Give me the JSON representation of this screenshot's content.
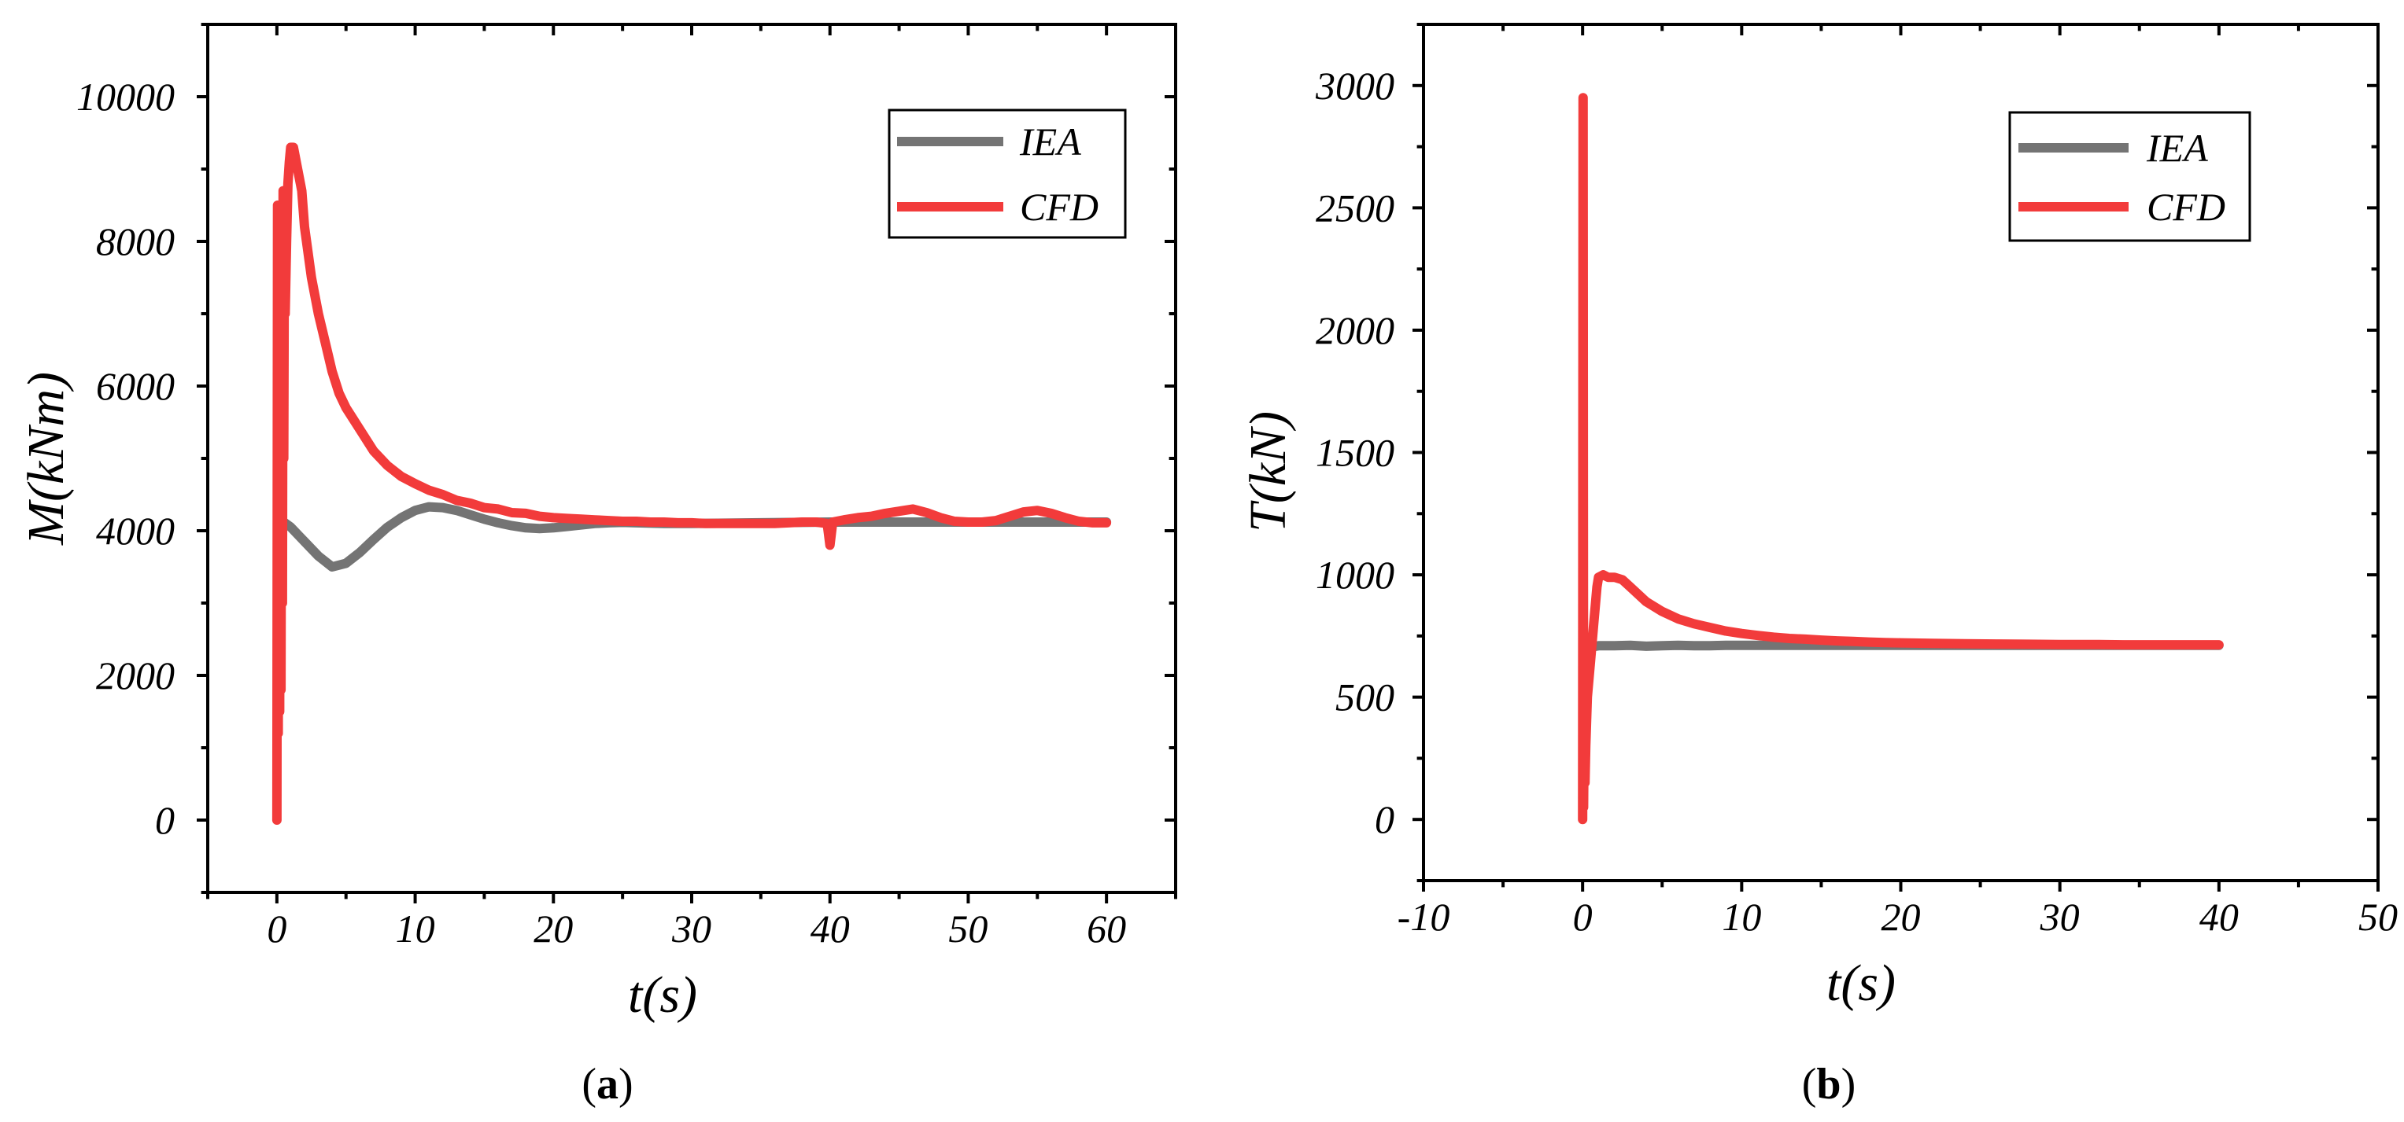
{
  "chart_data": [
    {
      "id": "a",
      "type": "line",
      "caption_label": "a",
      "xlabel": "t(s)",
      "ylabel": "M(kNm)",
      "xlim": [
        -5,
        65
      ],
      "ylim": [
        -1000,
        11000
      ],
      "xticks": [
        0,
        10,
        20,
        30,
        40,
        50,
        60
      ],
      "yticks": [
        0,
        2000,
        4000,
        6000,
        8000,
        10000
      ],
      "legend_position": "top-right",
      "series": [
        {
          "name": "IEA",
          "color": "#747474",
          "x": [
            0.2,
            0.5,
            1,
            1.5,
            2,
            3,
            4,
            5,
            6,
            7,
            8,
            9,
            10,
            11,
            12,
            13,
            14,
            15,
            16,
            17,
            18,
            19,
            20,
            21,
            22,
            23,
            24,
            25,
            26,
            28,
            30,
            35,
            40,
            45,
            50,
            55,
            60
          ],
          "y": [
            4150,
            4120,
            4050,
            3950,
            3850,
            3650,
            3500,
            3550,
            3700,
            3880,
            4050,
            4180,
            4280,
            4330,
            4320,
            4280,
            4220,
            4160,
            4110,
            4070,
            4040,
            4030,
            4040,
            4060,
            4080,
            4100,
            4110,
            4115,
            4110,
            4100,
            4100,
            4110,
            4120,
            4120,
            4120,
            4120,
            4120
          ]
        },
        {
          "name": "CFD",
          "color": "#f23b3b",
          "x": [
            0,
            0.05,
            0.1,
            0.15,
            0.2,
            0.25,
            0.3,
            0.35,
            0.4,
            0.45,
            0.5,
            0.55,
            0.6,
            0.7,
            0.8,
            0.9,
            1,
            1.2,
            1.5,
            1.8,
            2,
            2.5,
            3,
            3.5,
            4,
            4.5,
            5,
            6,
            7,
            8,
            9,
            10,
            11,
            12,
            13,
            14,
            15,
            16,
            17,
            18,
            19,
            20,
            21,
            22,
            23,
            24,
            25,
            26,
            27,
            28,
            29,
            30,
            31,
            32,
            33,
            34,
            35,
            36,
            37,
            38,
            39,
            39.8,
            40,
            40.2,
            41,
            42,
            43,
            44,
            45,
            46,
            47,
            48,
            49,
            50,
            51,
            52,
            53,
            54,
            55,
            56,
            57,
            58,
            59,
            60
          ],
          "y": [
            0,
            8500,
            1200,
            8000,
            1500,
            7000,
            1800,
            8300,
            3000,
            8700,
            5000,
            8500,
            7000,
            8000,
            8800,
            9100,
            9300,
            9300,
            9000,
            8700,
            8200,
            7500,
            7000,
            6600,
            6200,
            5900,
            5700,
            5400,
            5100,
            4900,
            4750,
            4650,
            4560,
            4500,
            4420,
            4380,
            4320,
            4300,
            4250,
            4240,
            4200,
            4180,
            4170,
            4160,
            4150,
            4140,
            4130,
            4130,
            4120,
            4120,
            4110,
            4110,
            4100,
            4100,
            4100,
            4100,
            4100,
            4100,
            4110,
            4120,
            4120,
            4100,
            3800,
            4120,
            4150,
            4180,
            4200,
            4240,
            4270,
            4300,
            4250,
            4180,
            4130,
            4120,
            4120,
            4140,
            4200,
            4260,
            4280,
            4240,
            4180,
            4130,
            4110,
            4110
          ]
        }
      ]
    },
    {
      "id": "b",
      "type": "line",
      "caption_label": "b",
      "xlabel": "t(s)",
      "ylabel": "T(kN)",
      "xlim": [
        -10,
        50
      ],
      "ylim": [
        -250,
        3250
      ],
      "xticks": [
        -10,
        0,
        10,
        20,
        30,
        40,
        50
      ],
      "yticks": [
        0,
        500,
        1000,
        1500,
        2000,
        2500,
        3000
      ],
      "legend_position": "top-right",
      "series": [
        {
          "name": "IEA",
          "color": "#747474",
          "x": [
            0.2,
            0.5,
            1,
            2,
            3,
            4,
            5,
            6,
            7,
            8,
            9,
            10,
            15,
            20,
            25,
            30,
            35,
            40
          ],
          "y": [
            690,
            705,
            710,
            710,
            712,
            708,
            710,
            712,
            710,
            710,
            712,
            712,
            712,
            712,
            712,
            712,
            712,
            712
          ]
        },
        {
          "name": "CFD",
          "color": "#f23b3b",
          "x": [
            0,
            0.03,
            0.06,
            0.1,
            0.15,
            0.2,
            0.3,
            0.5,
            0.7,
            0.9,
            1,
            1.3,
            1.6,
            2,
            2.5,
            3,
            4,
            5,
            6,
            7,
            8,
            9,
            10,
            11,
            12,
            13,
            14,
            15,
            16,
            17,
            18,
            19,
            20,
            22,
            24,
            26,
            28,
            30,
            32,
            34,
            36,
            38,
            40
          ],
          "y": [
            0,
            2950,
            50,
            400,
            150,
            300,
            500,
            650,
            800,
            950,
            990,
            1000,
            990,
            990,
            980,
            950,
            890,
            850,
            820,
            800,
            785,
            770,
            760,
            752,
            745,
            740,
            737,
            733,
            730,
            728,
            725,
            723,
            722,
            720,
            718,
            717,
            716,
            715,
            715,
            714,
            714,
            714,
            714
          ]
        }
      ]
    }
  ]
}
